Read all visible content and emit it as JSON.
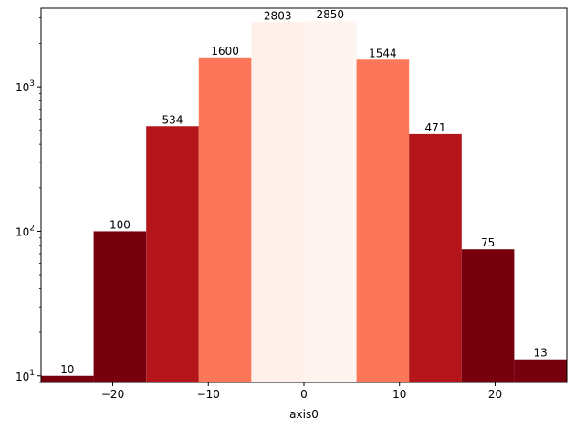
{
  "chart_data": {
    "type": "bar",
    "xlabel": "axis0",
    "ylabel": "",
    "yscale": "log",
    "ylim": [
      9,
      3500
    ],
    "xlim": [
      -27.5,
      27.5
    ],
    "bins": [
      {
        "x0": -27.5,
        "x1": -22.0,
        "value": 10,
        "label": "10",
        "color": "#76000d"
      },
      {
        "x0": -22.0,
        "x1": -16.5,
        "value": 100,
        "label": "100",
        "color": "#76000d"
      },
      {
        "x0": -16.5,
        "x1": -11.0,
        "value": 534,
        "label": "534",
        "color": "#b3151b"
      },
      {
        "x0": -11.0,
        "x1": -5.5,
        "value": 1600,
        "label": "1600",
        "color": "#fc7759"
      },
      {
        "x0": -5.5,
        "x1": 0.0,
        "value": 2803,
        "label": "2803",
        "color": "#fff0ea"
      },
      {
        "x0": 0.0,
        "x1": 5.5,
        "value": 2850,
        "label": "2850",
        "color": "#fff5f0"
      },
      {
        "x0": 5.5,
        "x1": 11.0,
        "value": 1544,
        "label": "1544",
        "color": "#fc7759"
      },
      {
        "x0": 11.0,
        "x1": 16.5,
        "value": 471,
        "label": "471",
        "color": "#b3151b"
      },
      {
        "x0": 16.5,
        "x1": 22.0,
        "value": 75,
        "label": "75",
        "color": "#76000d"
      },
      {
        "x0": 22.0,
        "x1": 27.5,
        "value": 13,
        "label": "13",
        "color": "#76000d"
      }
    ],
    "xticks": [
      {
        "value": -20,
        "label": "−20"
      },
      {
        "value": -10,
        "label": "−10"
      },
      {
        "value": 0,
        "label": "0"
      },
      {
        "value": 10,
        "label": "10"
      },
      {
        "value": 20,
        "label": "20"
      }
    ],
    "yticks": [
      {
        "value": 10,
        "base": "10",
        "exp": "1"
      },
      {
        "value": 100,
        "base": "10",
        "exp": "2"
      },
      {
        "value": 1000,
        "base": "10",
        "exp": "3"
      }
    ],
    "grid": false
  }
}
